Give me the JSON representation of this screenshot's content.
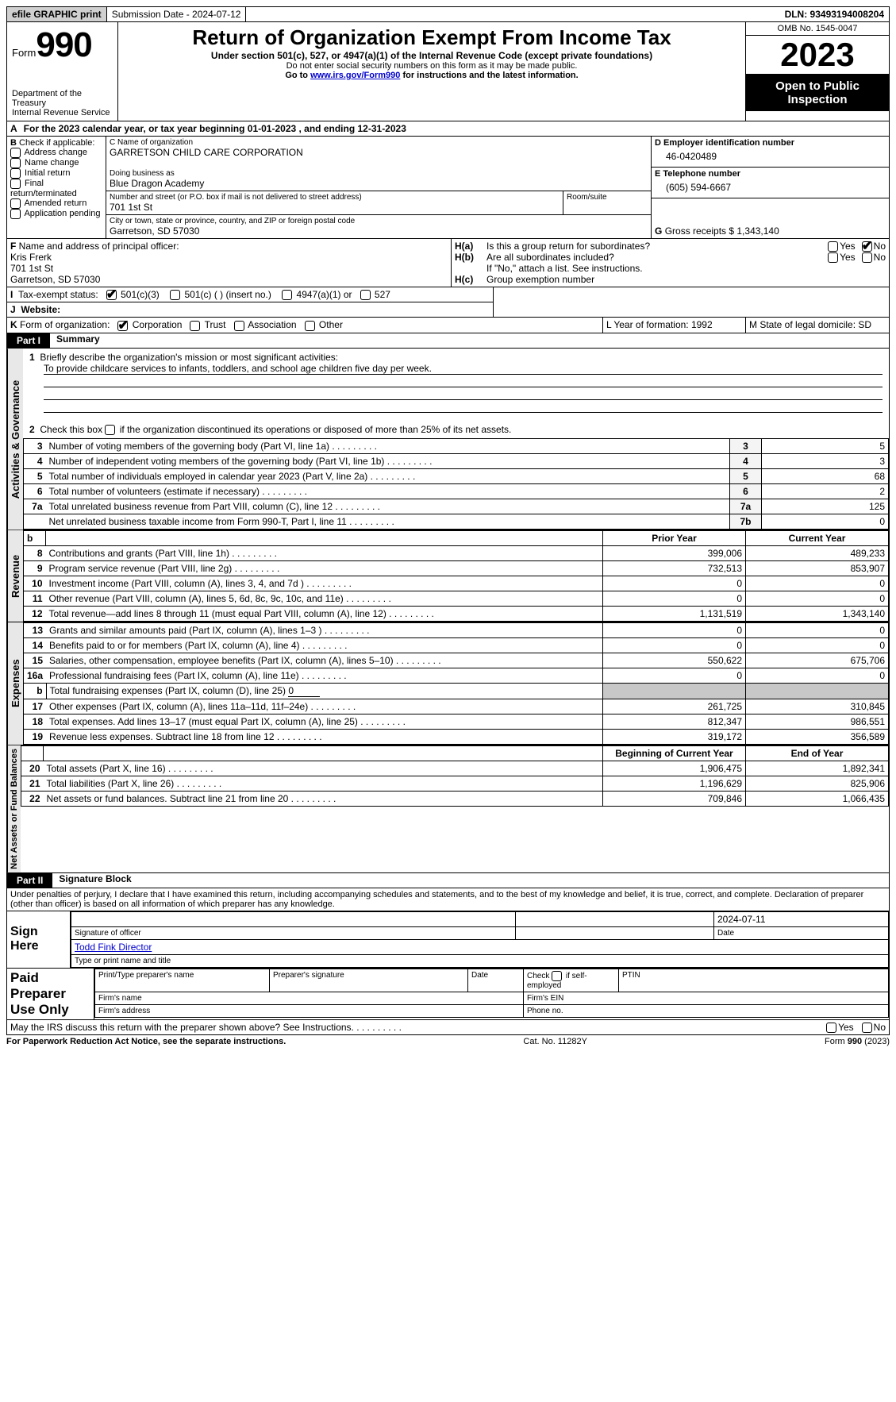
{
  "top": {
    "efile": "efile GRAPHIC print",
    "submission": "Submission Date - 2024-07-12",
    "dln": "DLN: 93493194008204"
  },
  "hdr": {
    "form": "Form",
    "n990": "990",
    "dept": "Department of the Treasury\nInternal Revenue Service",
    "title": "Return of Organization Exempt From Income Tax",
    "sub": "Under section 501(c), 527, or 4947(a)(1) of the Internal Revenue Code (except private foundations)",
    "nossn": "Do not enter social security numbers on this form as it may be made public.",
    "goto1": "Go to ",
    "gotolink": "www.irs.gov/Form990",
    "goto2": " for instructions and the latest information.",
    "omb": "OMB No. 1545-0047",
    "year": "2023",
    "inspect": "Open to Public Inspection"
  },
  "A": {
    "line": "For the 2023 calendar year, or tax year beginning 01-01-2023    , and ending 12-31-2023",
    "prefix": "A"
  },
  "B": {
    "label": "B",
    "check": "Check if applicable:",
    "opts": [
      "Address change",
      "Name change",
      "Initial return",
      "Final return/terminated",
      "Amended return",
      "Application pending"
    ]
  },
  "C": {
    "nameLabel": "C Name of organization",
    "name": "GARRETSON CHILD CARE CORPORATION",
    "dbaLabel": "Doing business as",
    "dba": "Blue Dragon Academy",
    "streetLabel": "Number and street (or P.O. box if mail is not delivered to street address)",
    "room": "Room/suite",
    "street": "701 1st St",
    "cityLabel": "City or town, state or province, country, and ZIP or foreign postal code",
    "city": "Garretson, SD   57030"
  },
  "D": {
    "label": "D Employer identification number",
    "ein": "46-0420489"
  },
  "E": {
    "label": "E Telephone number",
    "phone": "(605) 594-6667"
  },
  "G": {
    "label": "G",
    "text": "Gross receipts $ 1,343,140"
  },
  "F": {
    "label": "F",
    "text": " Name and address of principal officer:",
    "name": "Kris Frerk",
    "street": "701 1st St",
    "city": "Garretson, SD  57030"
  },
  "H": {
    "a": "H(a)",
    "atext": "Is this a group return for subordinates?",
    "b": "H(b)",
    "btext": "Are all subordinates included?",
    "bnote": "If \"No,\" attach a list. See instructions.",
    "c": "H(c)",
    "ctext": "Group exemption number",
    "yes": "Yes",
    "no": "No"
  },
  "I": {
    "label": "I",
    "text": "Tax-exempt status:",
    "o1": "501(c)(3)",
    "o2": "501(c) (  ) (insert no.)",
    "o3": "4947(a)(1) or",
    "o4": "527"
  },
  "J": {
    "label": "J",
    "text": "Website:"
  },
  "K": {
    "label": "K",
    "text": "Form of organization:",
    "o1": "Corporation",
    "o2": "Trust",
    "o3": "Association",
    "o4": "Other"
  },
  "L": {
    "text": "L Year of formation: 1992"
  },
  "M": {
    "text": "M State of legal domicile: SD"
  },
  "partI": {
    "tab": "Part I",
    "title": "Summary"
  },
  "s1": {
    "vlabel": "Activities & Governance",
    "l1a": "Briefly describe the organization's mission or most significant activities:",
    "l1b": "To provide childcare services to infants, toddlers, and school age children five day per week.",
    "l2": "Check this box ",
    "l2b": " if the organization discontinued its operations or disposed of more than 25% of its net assets.",
    "rows": [
      {
        "n": "3",
        "t": "Number of voting members of the governing body (Part VI, line 1a) ",
        "ln": "3",
        "v": "5"
      },
      {
        "n": "4",
        "t": "Number of independent voting members of the governing body (Part VI, line 1b) ",
        "ln": "4",
        "v": "3"
      },
      {
        "n": "5",
        "t": "Total number of individuals employed in calendar year 2023 (Part V, line 2a) ",
        "ln": "5",
        "v": "68"
      },
      {
        "n": "6",
        "t": "Total number of volunteers (estimate if necessary) ",
        "ln": "6",
        "v": "2"
      },
      {
        "n": "7a",
        "t": "Total unrelated business revenue from Part VIII, column (C), line 12 ",
        "ln": "7a",
        "v": "125"
      },
      {
        "n": "",
        "t": "Net unrelated business taxable income from Form 990-T, Part I, line 11 ",
        "ln": "7b",
        "v": "0"
      }
    ]
  },
  "s2": {
    "vlabel": "Revenue",
    "hdr": {
      "b": "b",
      "py": "Prior Year",
      "cy": "Current Year"
    },
    "rows": [
      {
        "n": "8",
        "t": "Contributions and grants (Part VIII, line 1h) ",
        "py": "399,006",
        "cy": "489,233"
      },
      {
        "n": "9",
        "t": "Program service revenue (Part VIII, line 2g) ",
        "py": "732,513",
        "cy": "853,907"
      },
      {
        "n": "10",
        "t": "Investment income (Part VIII, column (A), lines 3, 4, and 7d ) ",
        "py": "0",
        "cy": "0"
      },
      {
        "n": "11",
        "t": "Other revenue (Part VIII, column (A), lines 5, 6d, 8c, 9c, 10c, and 11e) ",
        "py": "0",
        "cy": "0"
      },
      {
        "n": "12",
        "t": "Total revenue—add lines 8 through 11 (must equal Part VIII, column (A), line 12) ",
        "py": "1,131,519",
        "cy": "1,343,140"
      }
    ]
  },
  "s3": {
    "vlabel": "Expenses",
    "rows": [
      {
        "n": "13",
        "t": "Grants and similar amounts paid (Part IX, column (A), lines 1–3 ) ",
        "py": "0",
        "cy": "0"
      },
      {
        "n": "14",
        "t": "Benefits paid to or for members (Part IX, column (A), line 4) ",
        "py": "0",
        "cy": "0"
      },
      {
        "n": "15",
        "t": "Salaries, other compensation, employee benefits (Part IX, column (A), lines 5–10) ",
        "py": "550,622",
        "cy": "675,706"
      },
      {
        "n": "16a",
        "t": "Professional fundraising fees (Part IX, column (A), line 11e) ",
        "py": "0",
        "cy": "0"
      }
    ],
    "l16b_a": "b",
    "l16b_t": "Total fundraising expenses (Part IX, column (D), line 25) ",
    "l16b_v": "0",
    "rows2": [
      {
        "n": "17",
        "t": "Other expenses (Part IX, column (A), lines 11a–11d, 11f–24e) ",
        "py": "261,725",
        "cy": "310,845"
      },
      {
        "n": "18",
        "t": "Total expenses. Add lines 13–17 (must equal Part IX, column (A), line 25) ",
        "py": "812,347",
        "cy": "986,551"
      },
      {
        "n": "19",
        "t": "Revenue less expenses. Subtract line 18 from line 12 ",
        "py": "319,172",
        "cy": "356,589"
      }
    ]
  },
  "s4": {
    "vlabel": "Net Assets or Fund Balances",
    "hdr": {
      "py": "Beginning of Current Year",
      "cy": "End of Year"
    },
    "rows": [
      {
        "n": "20",
        "t": "Total assets (Part X, line 16) ",
        "py": "1,906,475",
        "cy": "1,892,341"
      },
      {
        "n": "21",
        "t": "Total liabilities (Part X, line 26) ",
        "py": "1,196,629",
        "cy": "825,906"
      },
      {
        "n": "22",
        "t": "Net assets or fund balances. Subtract line 21 from line 20 ",
        "py": "709,846",
        "cy": "1,066,435"
      }
    ]
  },
  "partII": {
    "tab": "Part II",
    "title": "Signature Block"
  },
  "penalty": "Under penalties of perjury, I declare that I have examined this return, including accompanying schedules and statements, and to the best of my knowledge and belief, it is true, correct, and complete. Declaration of preparer (other than officer) is based on all information of which preparer has any knowledge.",
  "sign": {
    "here": "Sign Here",
    "date": "2024-07-11",
    "sigoff": "Signature of officer",
    "dateL": "Date",
    "name": "Todd Fink  Director",
    "typeL": "Type or print name and title"
  },
  "paid": {
    "label": "Paid Preparer Use Only",
    "c1": "Print/Type preparer's name",
    "c2": "Preparer's signature",
    "c3": "Date",
    "c4a": "Check ",
    "c4b": " if self-employed",
    "c5": "PTIN",
    "r2a": "Firm's name",
    "r2b": "Firm's EIN",
    "r3a": "Firm's address",
    "r3b": "Phone no."
  },
  "irs": {
    "q": "May the IRS discuss this return with the preparer shown above? See Instructions. ",
    "yes": "Yes",
    "no": "No"
  },
  "foot": {
    "l": "For Paperwork Reduction Act Notice, see the separate instructions.",
    "m": "Cat. No. 11282Y",
    "r": "Form 990 (2023)",
    "rb": "990"
  },
  "dots": "   .    .    .    .    .    .    .    .    ."
}
